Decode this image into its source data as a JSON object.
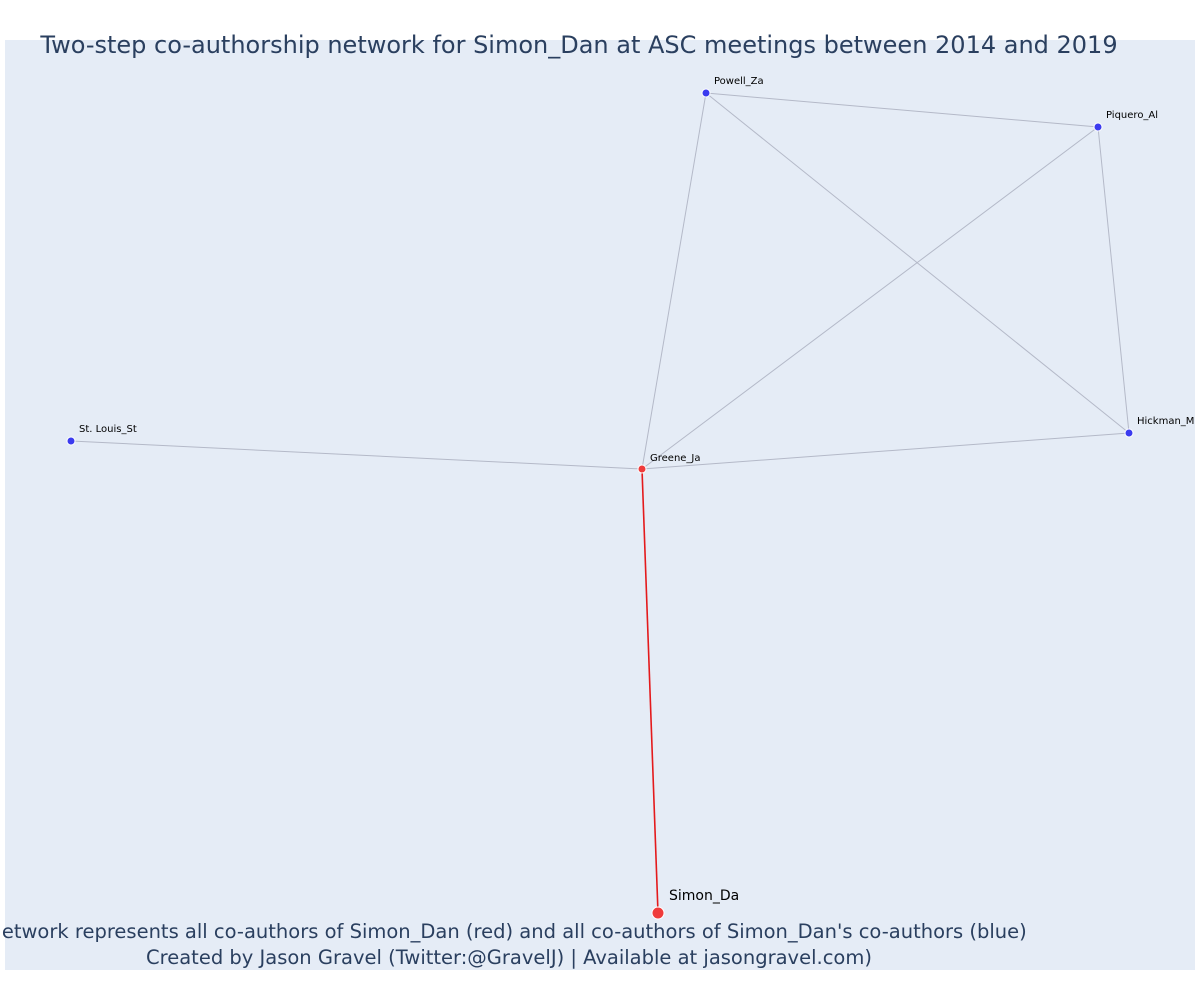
{
  "title": "Two-step co-authorship network for Simon_Dan at ASC meetings between 2014 and 2019",
  "caption": {
    "line1": "Network represents all co-authors of Simon_Dan (red) and all co-authors of Simon_Dan's co-authors (blue)",
    "line2": "Created by Jason Gravel (Twitter:@GravelJ) | Available at jasongravel.com)"
  },
  "colors": {
    "plot_background": "#e5ecf6",
    "edge": "#b4b9c8",
    "ego_edge": "#e41a1c",
    "ego_node": "#ef3b3b",
    "first_step_node": "#ef3b3b",
    "second_step_node": "#3b3bef",
    "title": "#2a3f5f",
    "label": "#000000"
  },
  "nodes": [
    {
      "id": "simon",
      "label": "Simon_Da",
      "role": "ego"
    },
    {
      "id": "greene",
      "label": "Greene_Ja",
      "role": "first_step"
    },
    {
      "id": "st_louis",
      "label": "St. Louis_St",
      "role": "second_step"
    },
    {
      "id": "powell",
      "label": "Powell_Za",
      "role": "second_step"
    },
    {
      "id": "piquero",
      "label": "Piquero_Al",
      "role": "second_step"
    },
    {
      "id": "hickman",
      "label": "Hickman_Ma",
      "role": "second_step"
    }
  ],
  "edges": [
    {
      "source": "simon",
      "target": "greene",
      "type": "ego"
    },
    {
      "source": "greene",
      "target": "st_louis",
      "type": "other"
    },
    {
      "source": "greene",
      "target": "powell",
      "type": "other"
    },
    {
      "source": "greene",
      "target": "piquero",
      "type": "other"
    },
    {
      "source": "greene",
      "target": "hickman",
      "type": "other"
    },
    {
      "source": "powell",
      "target": "piquero",
      "type": "other"
    },
    {
      "source": "powell",
      "target": "hickman",
      "type": "other"
    },
    {
      "source": "piquero",
      "target": "hickman",
      "type": "other"
    }
  ]
}
